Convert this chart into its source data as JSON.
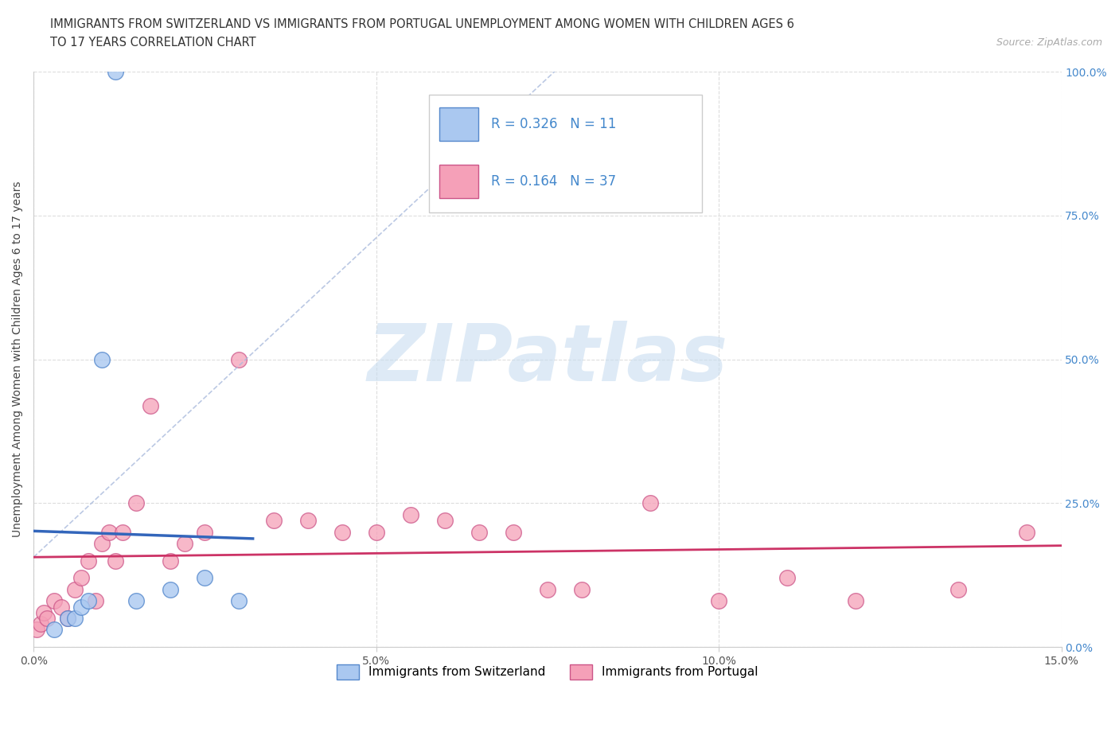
{
  "title_line1": "IMMIGRANTS FROM SWITZERLAND VS IMMIGRANTS FROM PORTUGAL UNEMPLOYMENT AMONG WOMEN WITH CHILDREN AGES 6",
  "title_line2": "TO 17 YEARS CORRELATION CHART",
  "source": "Source: ZipAtlas.com",
  "ylabel": "Unemployment Among Women with Children Ages 6 to 17 years",
  "xlim": [
    0.0,
    15.0
  ],
  "ylim": [
    0.0,
    100.0
  ],
  "xticks": [
    0.0,
    5.0,
    10.0,
    15.0
  ],
  "yticks": [
    0.0,
    25.0,
    50.0,
    75.0,
    100.0
  ],
  "xtick_labels": [
    "0.0%",
    "5.0%",
    "10.0%",
    "15.0%"
  ],
  "ytick_labels_right": [
    "0.0%",
    "25.0%",
    "50.0%",
    "75.0%",
    "100.0%"
  ],
  "switzerland_x": [
    1.2,
    0.3,
    0.5,
    0.6,
    0.7,
    0.8,
    1.0,
    1.5,
    2.0,
    2.5,
    3.0
  ],
  "switzerland_y": [
    100.0,
    3.0,
    5.0,
    5.0,
    7.0,
    8.0,
    50.0,
    8.0,
    10.0,
    12.0,
    8.0
  ],
  "portugal_x": [
    0.05,
    0.1,
    0.15,
    0.2,
    0.3,
    0.4,
    0.5,
    0.6,
    0.7,
    0.8,
    0.9,
    1.0,
    1.1,
    1.2,
    1.3,
    1.5,
    1.7,
    2.0,
    2.2,
    2.5,
    3.0,
    3.5,
    4.0,
    4.5,
    5.0,
    5.5,
    6.0,
    6.5,
    7.0,
    7.5,
    8.0,
    9.0,
    10.0,
    11.0,
    12.0,
    13.5,
    14.5
  ],
  "portugal_y": [
    3.0,
    4.0,
    6.0,
    5.0,
    8.0,
    7.0,
    5.0,
    10.0,
    12.0,
    15.0,
    8.0,
    18.0,
    20.0,
    15.0,
    20.0,
    25.0,
    42.0,
    15.0,
    18.0,
    20.0,
    50.0,
    22.0,
    22.0,
    20.0,
    20.0,
    23.0,
    22.0,
    20.0,
    20.0,
    10.0,
    10.0,
    25.0,
    8.0,
    12.0,
    8.0,
    10.0,
    20.0
  ],
  "swiss_color": "#aac8f0",
  "swiss_edge_color": "#5588cc",
  "portugal_color": "#f5a0b8",
  "portugal_edge_color": "#cc5588",
  "swiss_trend_color": "#3366bb",
  "portugal_trend_color": "#cc3366",
  "dashed_line_color": "#aabbdd",
  "R_swiss": 0.326,
  "N_swiss": 11,
  "R_portugal": 0.164,
  "N_portugal": 37,
  "watermark_text": "ZIPatlas",
  "watermark_color": "#c8ddf0",
  "background_color": "#ffffff",
  "grid_color": "#dddddd",
  "right_ytick_color": "#4488cc",
  "title_fontsize": 10.5,
  "axis_fontsize": 10,
  "legend_fontsize": 12
}
